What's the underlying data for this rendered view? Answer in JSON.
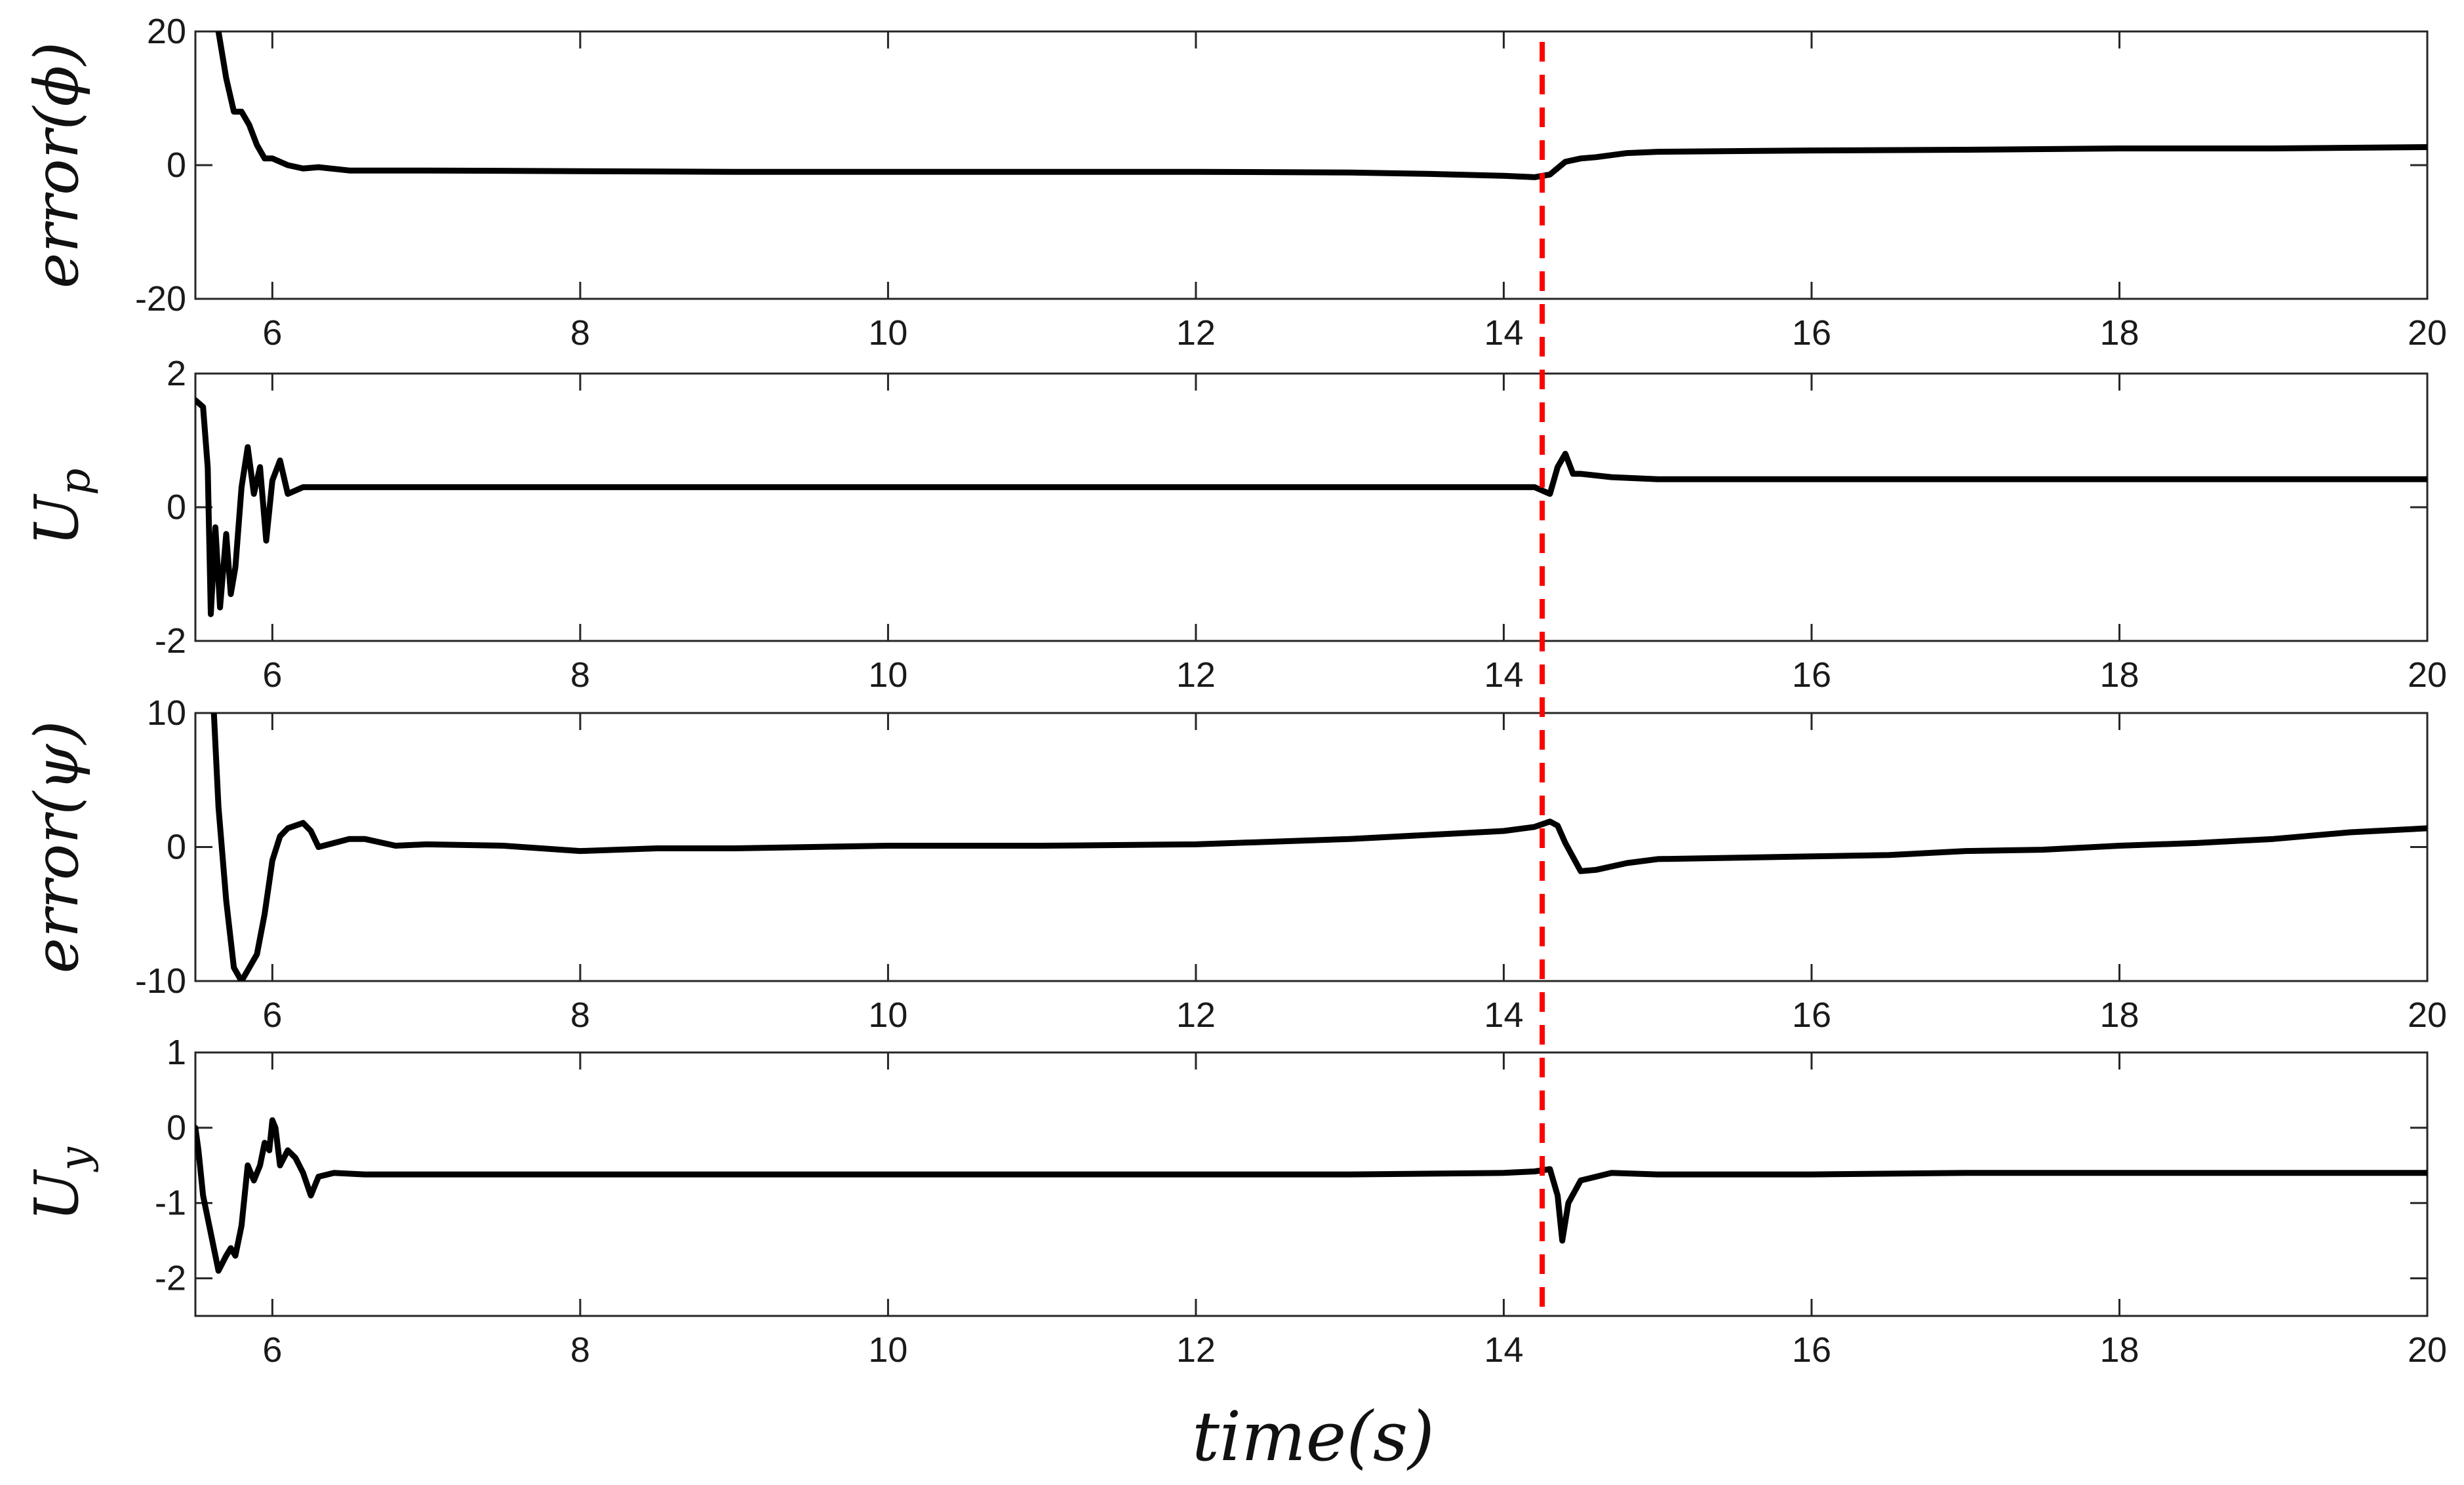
{
  "chart_data": {
    "type": "line",
    "colors": {
      "series": "#000000",
      "event_marker": "#ff0000"
    },
    "event_marker": {
      "x": 14.25,
      "style": "dashed"
    },
    "shared_xlabel": "time(s)",
    "panels": [
      {
        "ylabel": "error(ϕ)",
        "xlim": [
          5.5,
          20
        ],
        "ylim": [
          -20,
          20
        ],
        "yticks": [
          "-20",
          "0",
          "20"
        ],
        "xticks": [
          "6",
          "8",
          "10",
          "12",
          "14",
          "16",
          "18",
          "20"
        ],
        "series": [
          {
            "x": [
              5.65,
              5.7,
              5.75,
              5.8,
              5.85,
              5.9,
              5.95,
              6.0,
              6.1,
              6.2,
              6.3,
              6.5,
              7,
              8,
              9,
              10,
              11,
              12,
              13,
              13.5,
              14.0,
              14.2,
              14.3,
              14.4,
              14.5,
              14.6,
              14.8,
              15,
              16,
              17,
              18,
              19,
              20
            ],
            "y": [
              20,
              13,
              8,
              8,
              6,
              3,
              1,
              1,
              0,
              -0.5,
              -0.3,
              -0.8,
              -0.8,
              -0.9,
              -1,
              -1,
              -1,
              -1,
              -1.1,
              -1.3,
              -1.6,
              -1.8,
              -1.4,
              0.5,
              1.0,
              1.2,
              1.8,
              2.0,
              2.2,
              2.3,
              2.5,
              2.5,
              2.7
            ]
          }
        ]
      },
      {
        "ylabel": "U_p",
        "xlim": [
          5.5,
          20
        ],
        "ylim": [
          -2,
          2
        ],
        "yticks": [
          "-2",
          "0",
          "2"
        ],
        "xticks": [
          "6",
          "8",
          "10",
          "12",
          "14",
          "16",
          "18",
          "20"
        ],
        "series": [
          {
            "x": [
              5.5,
              5.55,
              5.58,
              5.6,
              5.63,
              5.66,
              5.7,
              5.73,
              5.76,
              5.8,
              5.84,
              5.88,
              5.92,
              5.96,
              6.0,
              6.05,
              6.1,
              6.2,
              6.5,
              7,
              8,
              9,
              10,
              11,
              12,
              13,
              14,
              14.2,
              14.3,
              14.35,
              14.4,
              14.45,
              14.5,
              14.7,
              15,
              16,
              17,
              18,
              19,
              20
            ],
            "y": [
              1.6,
              1.5,
              0.6,
              -1.6,
              -0.3,
              -1.5,
              -0.4,
              -1.3,
              -0.9,
              0.3,
              0.9,
              0.2,
              0.6,
              -0.5,
              0.4,
              0.7,
              0.2,
              0.3,
              0.3,
              0.3,
              0.3,
              0.3,
              0.3,
              0.3,
              0.3,
              0.3,
              0.3,
              0.3,
              0.2,
              0.6,
              0.8,
              0.5,
              0.5,
              0.45,
              0.42,
              0.42,
              0.42,
              0.42,
              0.42,
              0.42
            ]
          }
        ]
      },
      {
        "ylabel": "error(ψ)",
        "xlim": [
          5.5,
          20
        ],
        "ylim": [
          -10,
          10
        ],
        "yticks": [
          "-10",
          "0",
          "10"
        ],
        "xticks": [
          "6",
          "8",
          "10",
          "12",
          "14",
          "16",
          "18",
          "20"
        ],
        "series": [
          {
            "x": [
              5.62,
              5.65,
              5.7,
              5.75,
              5.8,
              5.85,
              5.9,
              5.95,
              6.0,
              6.05,
              6.1,
              6.2,
              6.25,
              6.3,
              6.4,
              6.5,
              6.6,
              6.8,
              7,
              7.5,
              8,
              8.5,
              9,
              9.5,
              10,
              11,
              12,
              13,
              13.5,
              14,
              14.2,
              14.3,
              14.35,
              14.4,
              14.5,
              14.6,
              14.8,
              15,
              15.5,
              16,
              16.5,
              17,
              17.5,
              18,
              18.5,
              19,
              19.5,
              20
            ],
            "y": [
              10,
              3,
              -4,
              -9,
              -10,
              -9,
              -8,
              -5,
              -1,
              0.8,
              1.4,
              1.8,
              1.2,
              0,
              0.3,
              0.6,
              0.6,
              0.1,
              0.2,
              0.1,
              -0.3,
              -0.1,
              -0.1,
              0,
              0.1,
              0.1,
              0.2,
              0.6,
              0.9,
              1.2,
              1.5,
              1.9,
              1.6,
              0.3,
              -1.8,
              -1.7,
              -1.2,
              -0.9,
              -0.8,
              -0.7,
              -0.6,
              -0.3,
              -0.2,
              0.1,
              0.3,
              0.6,
              1.1,
              1.4
            ]
          }
        ]
      },
      {
        "ylabel": "U_y",
        "xlim": [
          5.5,
          20
        ],
        "ylim": [
          -2.5,
          1
        ],
        "yticks": [
          "-2",
          "-1",
          "0",
          "1"
        ],
        "xticks": [
          "6",
          "8",
          "10",
          "12",
          "14",
          "16",
          "18",
          "20"
        ],
        "series": [
          {
            "x": [
              5.5,
              5.52,
              5.55,
              5.6,
              5.65,
              5.7,
              5.73,
              5.76,
              5.8,
              5.84,
              5.88,
              5.92,
              5.95,
              5.98,
              6.0,
              6.02,
              6.05,
              6.1,
              6.15,
              6.2,
              6.25,
              6.3,
              6.4,
              6.6,
              7,
              8,
              9,
              10,
              11,
              12,
              13,
              14,
              14.2,
              14.3,
              14.35,
              14.38,
              14.42,
              14.5,
              14.7,
              15,
              16,
              17,
              18,
              19,
              20
            ],
            "y": [
              0,
              -0.3,
              -0.9,
              -1.4,
              -1.9,
              -1.7,
              -1.6,
              -1.7,
              -1.3,
              -0.5,
              -0.7,
              -0.5,
              -0.2,
              -0.3,
              0.1,
              0.0,
              -0.5,
              -0.3,
              -0.4,
              -0.6,
              -0.9,
              -0.65,
              -0.6,
              -0.62,
              -0.62,
              -0.62,
              -0.62,
              -0.62,
              -0.62,
              -0.62,
              -0.62,
              -0.6,
              -0.58,
              -0.55,
              -0.9,
              -1.5,
              -1.0,
              -0.7,
              -0.6,
              -0.62,
              -0.62,
              -0.6,
              -0.6,
              -0.6,
              -0.6
            ]
          }
        ]
      }
    ]
  }
}
